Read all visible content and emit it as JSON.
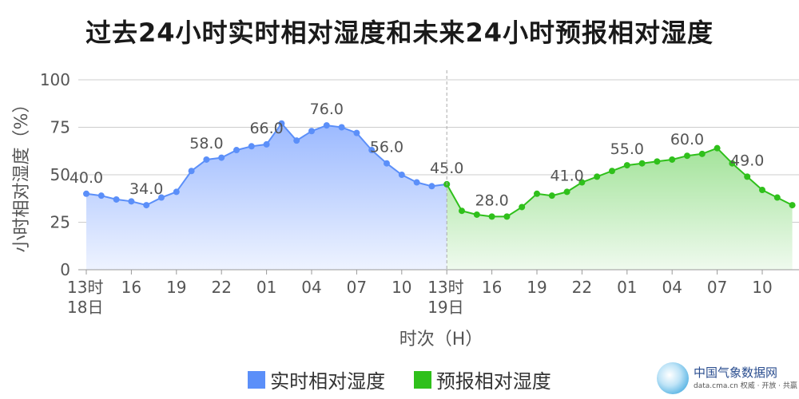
{
  "chart_data": {
    "type": "area",
    "title": "过去24小时实时相对湿度和未来24小时预报相对湿度",
    "xlabel": "时次（H）",
    "ylabel": "小时相对湿度（%）",
    "ylim": [
      0,
      100
    ],
    "yticks": [
      "0",
      "25",
      "50",
      "75",
      "100"
    ],
    "grid": true,
    "legend_position": "bottom-center",
    "x_hours": [
      "13",
      "14",
      "15",
      "16",
      "17",
      "18",
      "19",
      "20",
      "21",
      "22",
      "23",
      "00",
      "01",
      "02",
      "03",
      "04",
      "05",
      "06",
      "07",
      "08",
      "09",
      "10",
      "11",
      "12",
      "13",
      "14",
      "15",
      "16",
      "17",
      "18",
      "19",
      "20",
      "21",
      "22",
      "23",
      "00",
      "01",
      "02",
      "03",
      "04",
      "05",
      "06",
      "07",
      "08",
      "09",
      "10",
      "11",
      "12"
    ],
    "x_tick_labels": [
      {
        "index": 0,
        "label": "13时",
        "sub": "18日"
      },
      {
        "index": 3,
        "label": "16"
      },
      {
        "index": 6,
        "label": "19"
      },
      {
        "index": 9,
        "label": "22"
      },
      {
        "index": 12,
        "label": "01"
      },
      {
        "index": 15,
        "label": "04"
      },
      {
        "index": 18,
        "label": "07"
      },
      {
        "index": 21,
        "label": "10"
      },
      {
        "index": 24,
        "label": "13时",
        "sub": "19日"
      },
      {
        "index": 27,
        "label": "16"
      },
      {
        "index": 30,
        "label": "19"
      },
      {
        "index": 33,
        "label": "22"
      },
      {
        "index": 36,
        "label": "01"
      },
      {
        "index": 39,
        "label": "04"
      },
      {
        "index": 42,
        "label": "07"
      },
      {
        "index": 45,
        "label": "10"
      }
    ],
    "series": [
      {
        "name": "实时相对湿度",
        "color": "#5b8ff9",
        "fill_top": "#9bb9ff",
        "fill_bottom": "#eef3ff",
        "start_index": 0,
        "values": [
          40,
          39,
          37,
          36,
          34,
          38,
          41,
          52,
          58,
          59,
          63,
          65,
          66,
          77,
          68,
          73,
          76,
          75,
          72,
          63,
          56,
          50,
          46,
          44,
          45
        ],
        "labels": [
          {
            "index": 0,
            "text": "40.0"
          },
          {
            "index": 4,
            "text": "34.0"
          },
          {
            "index": 8,
            "text": "58.0"
          },
          {
            "index": 12,
            "text": "66.0"
          },
          {
            "index": 16,
            "text": "76.0"
          },
          {
            "index": 20,
            "text": "56.0"
          },
          {
            "index": 24,
            "text": "45.0"
          }
        ]
      },
      {
        "name": "预报相对湿度",
        "color": "#2fc01b",
        "fill_top": "#a3e39a",
        "fill_bottom": "#effaee",
        "start_index": 24,
        "values": [
          45,
          31,
          29,
          28,
          28,
          33,
          40,
          39,
          41,
          46,
          49,
          52,
          55,
          56,
          57,
          58,
          60,
          61,
          64,
          56,
          49,
          42,
          38,
          34
        ],
        "labels": [
          {
            "index": 27,
            "text": "28.0"
          },
          {
            "index": 32,
            "text": "41.0"
          },
          {
            "index": 36,
            "text": "55.0"
          },
          {
            "index": 40,
            "text": "60.0"
          },
          {
            "index": 44,
            "text": "49.0"
          }
        ]
      }
    ],
    "divider_index": 24
  },
  "logo": {
    "name_cn": "中国气象数据网",
    "name_en": "data.cma.cn 权威 · 开放 · 共赢"
  }
}
